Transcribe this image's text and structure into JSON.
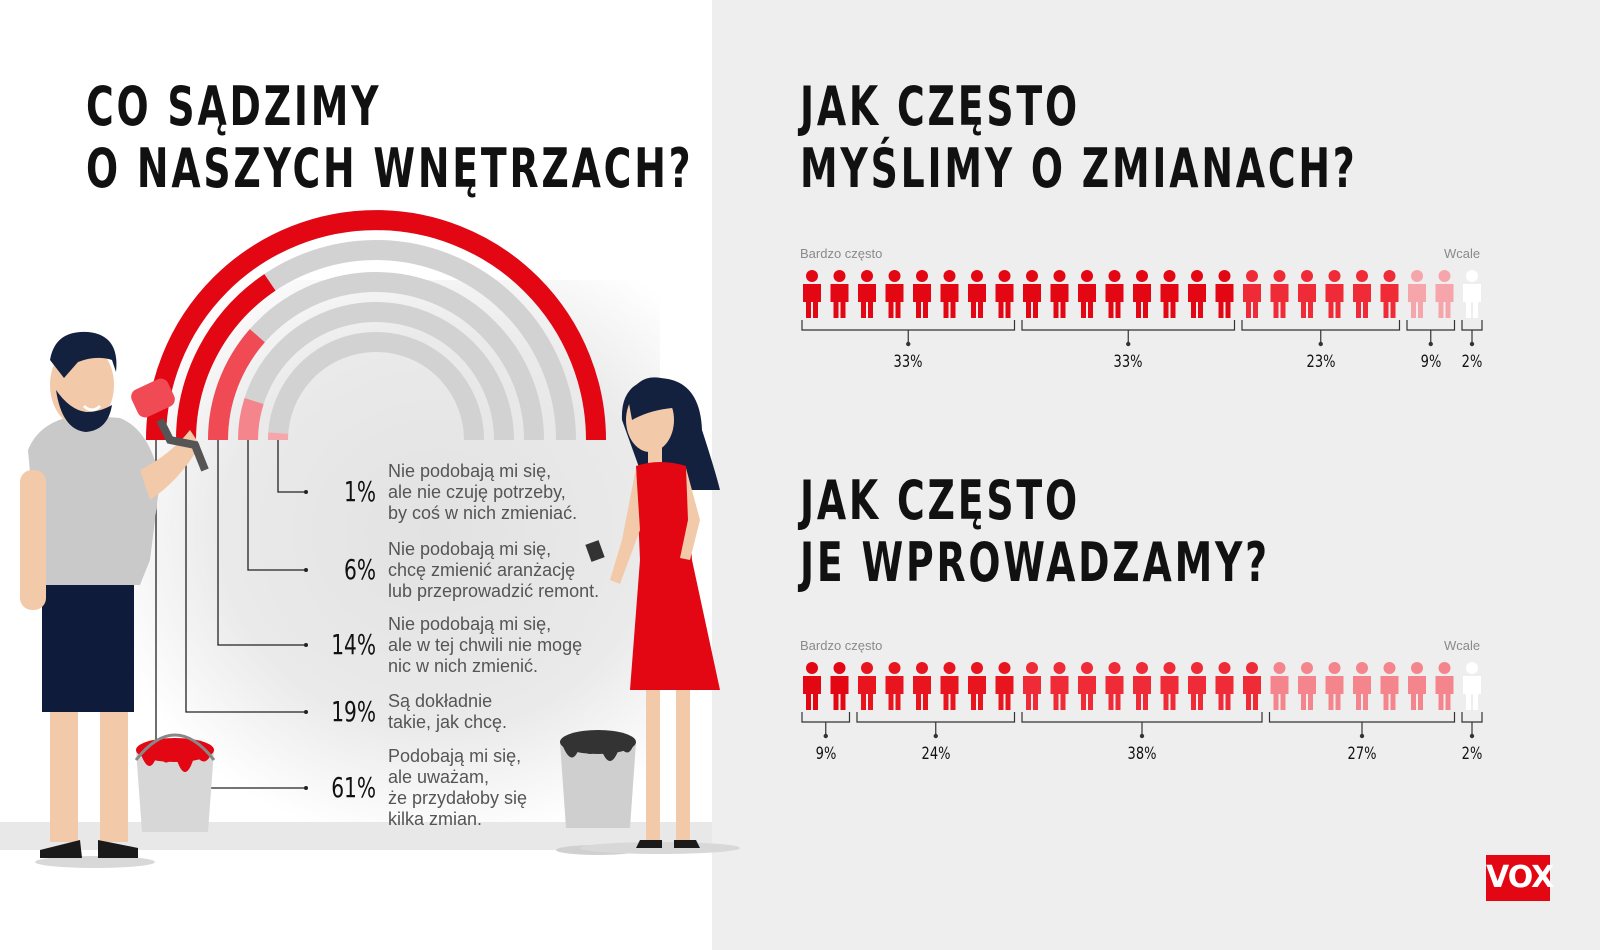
{
  "left": {
    "title_line1": "CO SĄDZIMY",
    "title_line2": "O NASZYCH WNĘTRZACH?"
  },
  "right": {
    "q1_line1": "JAK CZĘSTO",
    "q1_line2": "MYŚLIMY O ZMIANACH?",
    "q2_line1": "JAK CZĘSTO",
    "q2_line2": "JE WPROWADZAMY?",
    "scale_left": "Bardzo często",
    "scale_right": "Wcale"
  },
  "logo": "VOX",
  "colors": {
    "red": "#e30613",
    "red_mid": "#f04a55",
    "red_light": "#f5858c",
    "red_pale": "#f6a6ab",
    "grey_arc": "#d2d2d2",
    "white_figure": "#ffffff"
  },
  "chart_data": [
    {
      "type": "arc-bar",
      "title": "CO SĄDZIMY O NASZYCH WNĘTRZACH?",
      "series": [
        {
          "label_lines": [
            "Podobają mi się,",
            "ale uważam,",
            "że przydałoby się",
            "kilka zmian."
          ],
          "pct_text": "61%",
          "value": 61
        },
        {
          "label_lines": [
            "Są dokładnie",
            "takie, jak chcę."
          ],
          "pct_text": "19%",
          "value": 19
        },
        {
          "label_lines": [
            "Nie podobają mi się,",
            "ale w tej chwili nie mogę",
            "nic w nich zmienić."
          ],
          "pct_text": "14%",
          "value": 14
        },
        {
          "label_lines": [
            "Nie podobają mi się,",
            "chcę zmienić aranżację",
            "lub przeprowadzić remont."
          ],
          "pct_text": "6%",
          "value": 6
        },
        {
          "label_lines": [
            "Nie podobają mi się,",
            "ale nie czuję potrzeby,",
            "by coś w nich zmieniać."
          ],
          "pct_text": "1%",
          "value": 1
        }
      ]
    },
    {
      "type": "pictogram",
      "title": "JAK CZĘSTO MYŚLIMY O ZMIANACH?",
      "categories": [
        "Bardzo często",
        "",
        "",
        "",
        "Wcale"
      ],
      "groups": [
        {
          "pct_text": "33%",
          "value": 33,
          "figures": 8,
          "color": "#e30613"
        },
        {
          "pct_text": "33%",
          "value": 33,
          "figures": 8,
          "color": "#e30613"
        },
        {
          "pct_text": "23%",
          "value": 23,
          "figures": 6,
          "color": "#ee2b36"
        },
        {
          "pct_text": "9%",
          "value": 9,
          "figures": 2,
          "color": "#f6a6ab"
        },
        {
          "pct_text": "2%",
          "value": 2,
          "figures": 1,
          "color": "#ffffff"
        }
      ]
    },
    {
      "type": "pictogram",
      "title": "JAK CZĘSTO JE WPROWADZAMY?",
      "categories": [
        "Bardzo często",
        "",
        "",
        "",
        "Wcale"
      ],
      "groups": [
        {
          "pct_text": "9%",
          "value": 9,
          "figures": 2,
          "color": "#e30613"
        },
        {
          "pct_text": "24%",
          "value": 24,
          "figures": 6,
          "color": "#e8151f"
        },
        {
          "pct_text": "38%",
          "value": 38,
          "figures": 9,
          "color": "#ee2b36"
        },
        {
          "pct_text": "27%",
          "value": 27,
          "figures": 7,
          "color": "#f5858c"
        },
        {
          "pct_text": "2%",
          "value": 2,
          "figures": 1,
          "color": "#ffffff"
        }
      ]
    }
  ]
}
